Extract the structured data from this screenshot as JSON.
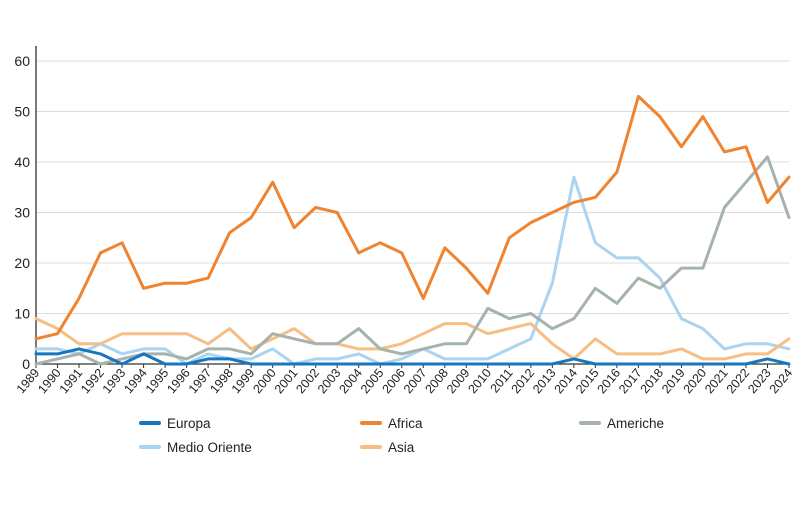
{
  "chart_data": {
    "type": "line",
    "title": "",
    "xlabel": "",
    "ylabel": "",
    "ylim": [
      0,
      60
    ],
    "yticks": [
      0,
      10,
      20,
      30,
      40,
      50,
      60
    ],
    "grid": "horizontal",
    "legend_position": "bottom",
    "x": [
      "1989",
      "1990",
      "1991",
      "1992",
      "1993",
      "1994",
      "1995",
      "1996",
      "1997",
      "1998",
      "1999",
      "2000",
      "2001",
      "2002",
      "2003",
      "2004",
      "2005",
      "2006",
      "2007",
      "2008",
      "2009",
      "2010",
      "2011",
      "2012",
      "2013",
      "2014",
      "2015",
      "2016",
      "2017",
      "2018",
      "2019",
      "2020",
      "2021",
      "2022",
      "2023",
      "2024"
    ],
    "series": [
      {
        "name": "Medio Oriente",
        "color": "#aad4ef",
        "values": [
          3,
          3,
          2,
          4,
          2,
          3,
          3,
          0,
          2,
          1,
          1,
          3,
          0,
          1,
          1,
          2,
          0,
          1,
          3,
          1,
          1,
          1,
          3,
          5,
          16,
          37,
          24,
          21,
          21,
          17,
          9,
          7,
          3,
          4,
          4,
          3
        ]
      },
      {
        "name": "Asia",
        "color": "#f7be84",
        "values": [
          9,
          7,
          4,
          4,
          6,
          6,
          6,
          6,
          4,
          7,
          3,
          5,
          7,
          4,
          4,
          3,
          3,
          4,
          6,
          8,
          8,
          6,
          7,
          8,
          4,
          1,
          5,
          2,
          2,
          2,
          3,
          1,
          1,
          2,
          2,
          5
        ]
      },
      {
        "name": "Americhe",
        "color": "#a6b3ad",
        "values": [
          0,
          1,
          2,
          0,
          1,
          2,
          2,
          1,
          3,
          3,
          2,
          6,
          5,
          4,
          4,
          7,
          3,
          2,
          3,
          4,
          4,
          11,
          9,
          10,
          7,
          9,
          15,
          12,
          17,
          15,
          19,
          19,
          31,
          36,
          41,
          29
        ]
      },
      {
        "name": "Europa",
        "color": "#1776bd",
        "values": [
          2,
          2,
          3,
          2,
          0,
          2,
          0,
          0,
          1,
          1,
          0,
          0,
          0,
          0,
          0,
          0,
          0,
          0,
          0,
          0,
          0,
          0,
          0,
          0,
          0,
          1,
          0,
          0,
          0,
          0,
          0,
          0,
          0,
          0,
          1,
          0
        ]
      },
      {
        "name": "Africa",
        "color": "#f08330",
        "values": [
          5,
          6,
          13,
          22,
          24,
          15,
          16,
          16,
          17,
          26,
          29,
          36,
          27,
          31,
          30,
          22,
          24,
          22,
          13,
          23,
          19,
          14,
          25,
          28,
          30,
          32,
          33,
          38,
          53,
          49,
          43,
          49,
          42,
          43,
          32,
          37
        ]
      }
    ],
    "legend": [
      {
        "name": "Europa",
        "color": "#1776bd"
      },
      {
        "name": "Africa",
        "color": "#f08330"
      },
      {
        "name": "Americhe",
        "color": "#a6b3ad"
      },
      {
        "name": "Medio Oriente",
        "color": "#aad4ef"
      },
      {
        "name": "Asia",
        "color": "#f7be84"
      }
    ]
  }
}
